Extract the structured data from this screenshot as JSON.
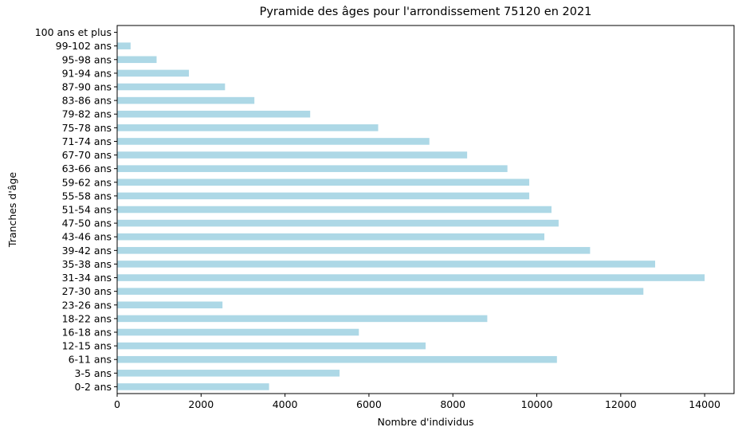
{
  "chart_data": {
    "type": "bar",
    "orientation": "horizontal",
    "title": "Pyramide des âges pour l'arrondissement 75120 en 2021",
    "xlabel": "Nombre d'individus",
    "ylabel": "Tranches d'âge",
    "xlim": [
      0,
      14700
    ],
    "xticks": [
      0,
      2000,
      4000,
      6000,
      8000,
      10000,
      12000,
      14000
    ],
    "grid": false,
    "legend": "none",
    "bar_color": "#add8e6",
    "categories": [
      "0-2 ans",
      "3-5 ans",
      "6-11 ans",
      "12-15 ans",
      "16-18 ans",
      "18-22 ans",
      "23-26 ans",
      "27-30 ans",
      "31-34 ans",
      "35-38 ans",
      "39-42 ans",
      "43-46 ans",
      "47-50 ans",
      "51-54 ans",
      "55-58 ans",
      "59-62 ans",
      "63-66 ans",
      "67-70 ans",
      "71-74 ans",
      "75-78 ans",
      "79-82 ans",
      "83-86 ans",
      "87-90 ans",
      "91-94 ans",
      "95-98 ans",
      "99-102 ans",
      "100 ans et plus"
    ],
    "values": [
      3620,
      5300,
      10480,
      7350,
      5760,
      8820,
      2510,
      12540,
      14000,
      12820,
      11270,
      10180,
      10520,
      10350,
      9820,
      9820,
      9300,
      8340,
      7440,
      6220,
      4600,
      3270,
      2570,
      1710,
      940,
      320,
      0
    ]
  }
}
